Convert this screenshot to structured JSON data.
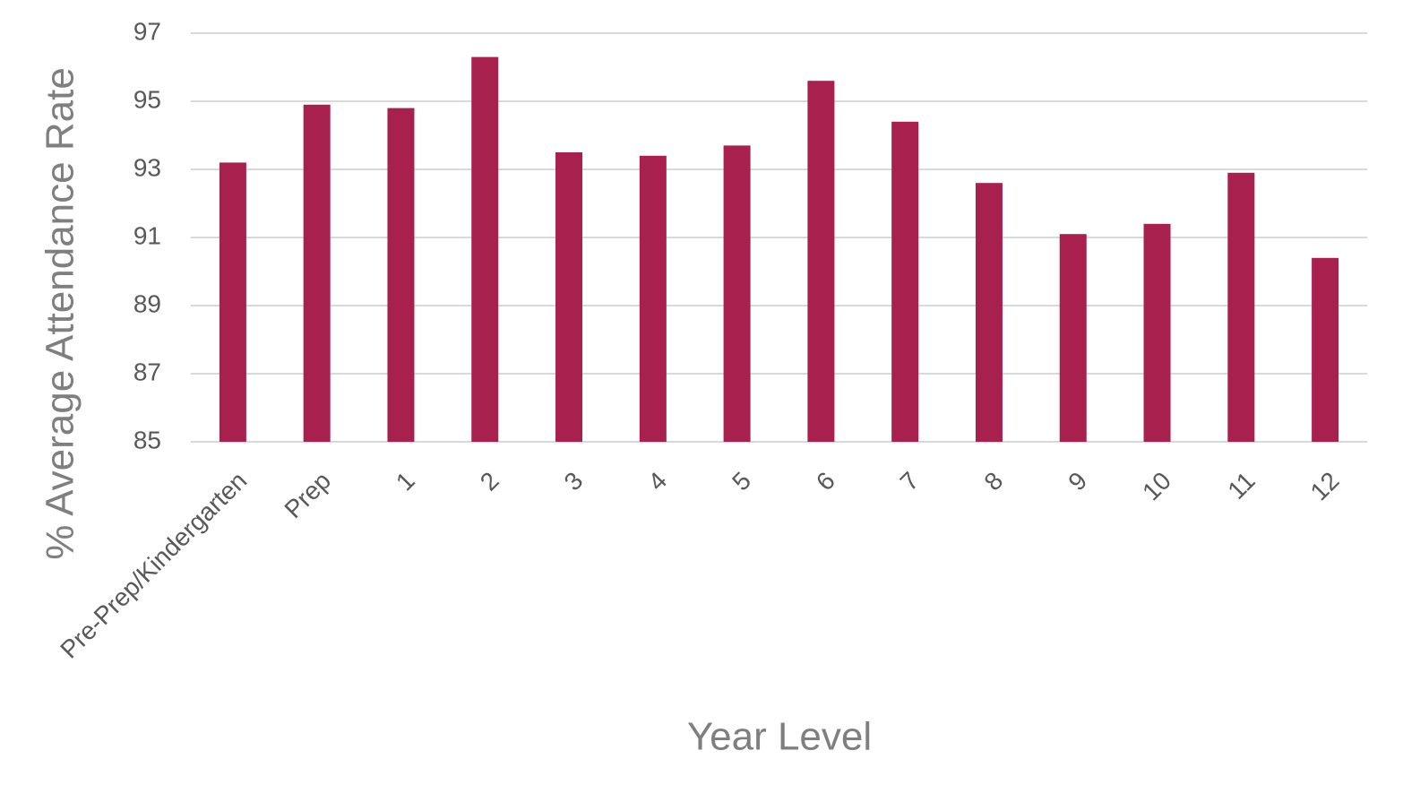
{
  "chart_data": {
    "type": "bar",
    "ylabel": "% Average Attendance Rate",
    "xlabel": "Year Level",
    "categories": [
      "Pre-Prep/Kindergarten",
      "Prep",
      "1",
      "2",
      "3",
      "4",
      "5",
      "6",
      "7",
      "8",
      "9",
      "10",
      "11",
      "12"
    ],
    "values": [
      93.2,
      94.9,
      94.8,
      96.3,
      93.5,
      93.4,
      93.7,
      95.6,
      94.4,
      92.6,
      91.1,
      91.4,
      92.9,
      90.4
    ],
    "color": "#a8214e",
    "ylim": [
      85,
      97
    ],
    "yticks": [
      85,
      87,
      89,
      91,
      93,
      95,
      97
    ],
    "grid": true
  }
}
